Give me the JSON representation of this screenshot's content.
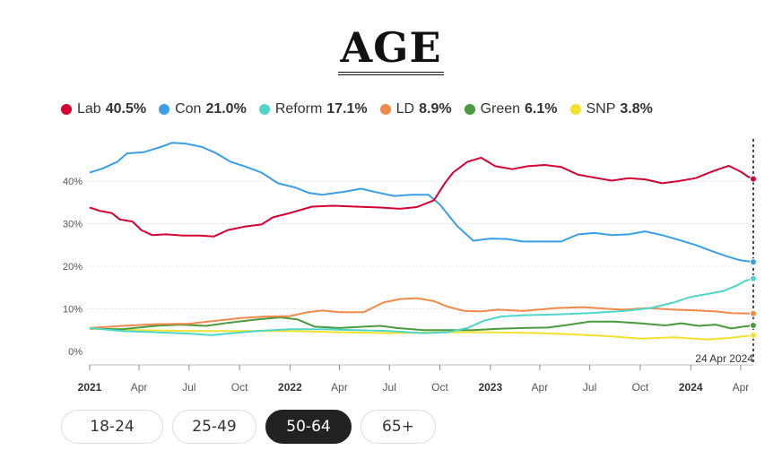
{
  "title": "AGE",
  "legend": [
    {
      "name": "Lab",
      "value": "40.5%",
      "color": "#d50032"
    },
    {
      "name": "Con",
      "value": "21.0%",
      "color": "#3a9fe6"
    },
    {
      "name": "Reform",
      "value": "17.1%",
      "color": "#4fd6c8"
    },
    {
      "name": "LD",
      "value": "8.9%",
      "color": "#f08a4b"
    },
    {
      "name": "Green",
      "value": "6.1%",
      "color": "#4c9a3f"
    },
    {
      "name": "SNP",
      "value": "3.8%",
      "color": "#f2e22e"
    }
  ],
  "tabs": [
    {
      "label": "18-24",
      "active": false
    },
    {
      "label": "25-49",
      "active": false
    },
    {
      "label": "50-64",
      "active": true
    },
    {
      "label": "65+",
      "active": false
    }
  ],
  "chart_data": {
    "type": "line",
    "end_label": "24 Apr 2024",
    "y_ticks": [
      "40%",
      "30%",
      "20%",
      "10%",
      "0%"
    ],
    "y_tick_values": [
      40,
      30,
      20,
      10,
      0
    ],
    "ylim": [
      0,
      50
    ],
    "x_ticks": [
      {
        "label": "2021",
        "date": "2021-01-01",
        "bold": true
      },
      {
        "label": "Apr",
        "date": "2021-04-01",
        "bold": false
      },
      {
        "label": "Jul",
        "date": "2021-07-01",
        "bold": false
      },
      {
        "label": "Oct",
        "date": "2021-10-01",
        "bold": false
      },
      {
        "label": "2022",
        "date": "2022-01-01",
        "bold": true
      },
      {
        "label": "Apr",
        "date": "2022-04-01",
        "bold": false
      },
      {
        "label": "Jul",
        "date": "2022-07-01",
        "bold": false
      },
      {
        "label": "Oct",
        "date": "2022-10-01",
        "bold": false
      },
      {
        "label": "2023",
        "date": "2023-01-01",
        "bold": true
      },
      {
        "label": "Apr",
        "date": "2023-04-01",
        "bold": false
      },
      {
        "label": "Jul",
        "date": "2023-07-01",
        "bold": false
      },
      {
        "label": "Oct",
        "date": "2023-10-01",
        "bold": false
      },
      {
        "label": "2024",
        "date": "2024-01-01",
        "bold": true
      },
      {
        "label": "Apr",
        "date": "2024-04-01",
        "bold": false
      }
    ],
    "xlim": [
      "2021-01-01",
      "2024-04-24"
    ],
    "grid": true,
    "series": [
      {
        "name": "Lab",
        "color": "#d50032",
        "points": [
          [
            "2021-01-01",
            33.8
          ],
          [
            "2021-01-20",
            33
          ],
          [
            "2021-02-10",
            32.5
          ],
          [
            "2021-02-25",
            31
          ],
          [
            "2021-03-20",
            30.5
          ],
          [
            "2021-04-05",
            28.5
          ],
          [
            "2021-04-25",
            27.3
          ],
          [
            "2021-05-20",
            27.5
          ],
          [
            "2021-06-20",
            27.2
          ],
          [
            "2021-07-20",
            27.2
          ],
          [
            "2021-08-15",
            27
          ],
          [
            "2021-09-10",
            28.5
          ],
          [
            "2021-10-10",
            29.3
          ],
          [
            "2021-11-10",
            29.8
          ],
          [
            "2021-12-01",
            31.5
          ],
          [
            "2022-01-01",
            32.5
          ],
          [
            "2022-02-10",
            34
          ],
          [
            "2022-03-20",
            34.2
          ],
          [
            "2022-05-01",
            34
          ],
          [
            "2022-06-15",
            33.8
          ],
          [
            "2022-07-20",
            33.5
          ],
          [
            "2022-08-20",
            33.9
          ],
          [
            "2022-09-20",
            35.5
          ],
          [
            "2022-10-10",
            39.5
          ],
          [
            "2022-10-25",
            42
          ],
          [
            "2022-11-20",
            44.5
          ],
          [
            "2022-12-15",
            45.5
          ],
          [
            "2023-01-10",
            43.5
          ],
          [
            "2023-02-10",
            42.8
          ],
          [
            "2023-03-10",
            43.5
          ],
          [
            "2023-04-10",
            43.8
          ],
          [
            "2023-05-10",
            43.3
          ],
          [
            "2023-06-10",
            41.5
          ],
          [
            "2023-07-10",
            40.8
          ],
          [
            "2023-08-10",
            40.1
          ],
          [
            "2023-09-10",
            40.7
          ],
          [
            "2023-10-10",
            40.4
          ],
          [
            "2023-11-10",
            39.5
          ],
          [
            "2023-12-10",
            40
          ],
          [
            "2024-01-10",
            40.7
          ],
          [
            "2024-02-10",
            42.3
          ],
          [
            "2024-03-10",
            43.6
          ],
          [
            "2024-04-01",
            42.2
          ],
          [
            "2024-04-15",
            41
          ],
          [
            "2024-04-24",
            40.5
          ]
        ]
      },
      {
        "name": "Con",
        "color": "#3a9fe6",
        "points": [
          [
            "2021-01-01",
            42
          ],
          [
            "2021-01-25",
            43
          ],
          [
            "2021-02-20",
            44.5
          ],
          [
            "2021-03-10",
            46.5
          ],
          [
            "2021-04-10",
            46.8
          ],
          [
            "2021-05-10",
            48
          ],
          [
            "2021-06-01",
            49
          ],
          [
            "2021-06-25",
            48.8
          ],
          [
            "2021-07-25",
            48
          ],
          [
            "2021-08-20",
            46.5
          ],
          [
            "2021-09-15",
            44.5
          ],
          [
            "2021-10-10",
            43.5
          ],
          [
            "2021-11-10",
            42
          ],
          [
            "2021-12-10",
            39.5
          ],
          [
            "2022-01-10",
            38.5
          ],
          [
            "2022-02-05",
            37.2
          ],
          [
            "2022-03-01",
            36.8
          ],
          [
            "2022-04-10",
            37.5
          ],
          [
            "2022-05-10",
            38.2
          ],
          [
            "2022-06-10",
            37.3
          ],
          [
            "2022-07-10",
            36.5
          ],
          [
            "2022-08-10",
            36.8
          ],
          [
            "2022-09-10",
            36.8
          ],
          [
            "2022-10-01",
            34.5
          ],
          [
            "2022-11-01",
            29.5
          ],
          [
            "2022-12-01",
            26
          ],
          [
            "2023-01-01",
            26.5
          ],
          [
            "2023-02-01",
            26.4
          ],
          [
            "2023-03-01",
            25.8
          ],
          [
            "2023-04-01",
            25.8
          ],
          [
            "2023-05-10",
            25.8
          ],
          [
            "2023-06-10",
            27.5
          ],
          [
            "2023-07-10",
            27.8
          ],
          [
            "2023-08-10",
            27.3
          ],
          [
            "2023-09-10",
            27.5
          ],
          [
            "2023-10-10",
            28.2
          ],
          [
            "2023-11-10",
            27.3
          ],
          [
            "2023-12-10",
            26.2
          ],
          [
            "2024-01-10",
            25
          ],
          [
            "2024-02-10",
            23.5
          ],
          [
            "2024-03-10",
            22.2
          ],
          [
            "2024-04-01",
            21.4
          ],
          [
            "2024-04-24",
            21.0
          ]
        ]
      },
      {
        "name": "Reform",
        "color": "#4fd6c8",
        "points": [
          [
            "2021-01-01",
            5.5
          ],
          [
            "2021-03-01",
            4.8
          ],
          [
            "2021-05-01",
            4.5
          ],
          [
            "2021-07-01",
            4.2
          ],
          [
            "2021-08-10",
            3.8
          ],
          [
            "2021-09-10",
            4.2
          ],
          [
            "2021-11-01",
            4.8
          ],
          [
            "2022-01-01",
            5.2
          ],
          [
            "2022-03-01",
            5.2
          ],
          [
            "2022-05-01",
            5.0
          ],
          [
            "2022-07-01",
            4.8
          ],
          [
            "2022-09-01",
            4.3
          ],
          [
            "2022-10-15",
            4.5
          ],
          [
            "2022-11-20",
            5.5
          ],
          [
            "2022-12-20",
            7.2
          ],
          [
            "2023-01-20",
            8.2
          ],
          [
            "2023-03-01",
            8.5
          ],
          [
            "2023-05-01",
            8.7
          ],
          [
            "2023-07-01",
            9.0
          ],
          [
            "2023-09-01",
            9.5
          ],
          [
            "2023-10-20",
            10.2
          ],
          [
            "2023-12-01",
            11.5
          ],
          [
            "2024-01-01",
            12.8
          ],
          [
            "2024-02-01",
            13.5
          ],
          [
            "2024-03-01",
            14.2
          ],
          [
            "2024-03-25",
            15.5
          ],
          [
            "2024-04-10",
            16.6
          ],
          [
            "2024-04-24",
            17.1
          ]
        ]
      },
      {
        "name": "LD",
        "color": "#f08a4b",
        "points": [
          [
            "2021-01-01",
            5.5
          ],
          [
            "2021-03-01",
            6.0
          ],
          [
            "2021-05-01",
            6.4
          ],
          [
            "2021-07-01",
            6.5
          ],
          [
            "2021-08-20",
            7.2
          ],
          [
            "2021-10-01",
            7.8
          ],
          [
            "2021-11-15",
            8.2
          ],
          [
            "2022-01-01",
            8.3
          ],
          [
            "2022-02-01",
            9.2
          ],
          [
            "2022-03-01",
            9.6
          ],
          [
            "2022-04-01",
            9.2
          ],
          [
            "2022-05-15",
            9.2
          ],
          [
            "2022-06-20",
            11.5
          ],
          [
            "2022-07-20",
            12.3
          ],
          [
            "2022-08-20",
            12.5
          ],
          [
            "2022-09-20",
            11.8
          ],
          [
            "2022-10-15",
            10.5
          ],
          [
            "2022-11-15",
            9.5
          ],
          [
            "2022-12-15",
            9.4
          ],
          [
            "2023-01-15",
            9.8
          ],
          [
            "2023-03-01",
            9.5
          ],
          [
            "2023-05-01",
            10.2
          ],
          [
            "2023-06-20",
            10.4
          ],
          [
            "2023-08-01",
            10.0
          ],
          [
            "2023-09-01",
            9.8
          ],
          [
            "2023-10-15",
            10.2
          ],
          [
            "2023-12-01",
            9.8
          ],
          [
            "2024-01-15",
            9.6
          ],
          [
            "2024-02-15",
            9.4
          ],
          [
            "2024-03-15",
            9.0
          ],
          [
            "2024-04-24",
            8.9
          ]
        ]
      },
      {
        "name": "Green",
        "color": "#4c9a3f",
        "points": [
          [
            "2021-01-01",
            5.4
          ],
          [
            "2021-03-01",
            5.2
          ],
          [
            "2021-05-01",
            6.0
          ],
          [
            "2021-06-15",
            6.3
          ],
          [
            "2021-08-01",
            6.0
          ],
          [
            "2021-09-15",
            6.8
          ],
          [
            "2021-11-01",
            7.5
          ],
          [
            "2021-12-15",
            8.0
          ],
          [
            "2022-01-15",
            7.5
          ],
          [
            "2022-02-15",
            5.8
          ],
          [
            "2022-04-01",
            5.5
          ],
          [
            "2022-05-15",
            5.8
          ],
          [
            "2022-06-15",
            6.0
          ],
          [
            "2022-07-15",
            5.5
          ],
          [
            "2022-09-01",
            5.0
          ],
          [
            "2022-10-15",
            5.0
          ],
          [
            "2022-12-01",
            5.0
          ],
          [
            "2023-01-15",
            5.3
          ],
          [
            "2023-03-01",
            5.5
          ],
          [
            "2023-04-15",
            5.6
          ],
          [
            "2023-05-20",
            6.2
          ],
          [
            "2023-07-01",
            7.0
          ],
          [
            "2023-08-15",
            7.0
          ],
          [
            "2023-10-01",
            6.6
          ],
          [
            "2023-11-15",
            6.1
          ],
          [
            "2023-12-15",
            6.6
          ],
          [
            "2024-01-15",
            6.0
          ],
          [
            "2024-02-15",
            6.3
          ],
          [
            "2024-03-15",
            5.4
          ],
          [
            "2024-04-05",
            5.8
          ],
          [
            "2024-04-24",
            6.1
          ]
        ]
      },
      {
        "name": "SNP",
        "color": "#f2e22e",
        "points": [
          [
            "2021-01-01",
            5.3
          ],
          [
            "2021-04-01",
            5.0
          ],
          [
            "2021-07-01",
            4.8
          ],
          [
            "2021-10-01",
            4.8
          ],
          [
            "2022-01-01",
            4.8
          ],
          [
            "2022-04-01",
            4.5
          ],
          [
            "2022-07-01",
            4.3
          ],
          [
            "2022-10-01",
            4.5
          ],
          [
            "2023-01-01",
            4.5
          ],
          [
            "2023-04-01",
            4.3
          ],
          [
            "2023-06-01",
            4.0
          ],
          [
            "2023-08-01",
            3.6
          ],
          [
            "2023-10-01",
            3.0
          ],
          [
            "2023-12-01",
            3.3
          ],
          [
            "2024-02-01",
            2.8
          ],
          [
            "2024-03-15",
            3.2
          ],
          [
            "2024-04-24",
            3.8
          ]
        ]
      }
    ]
  }
}
